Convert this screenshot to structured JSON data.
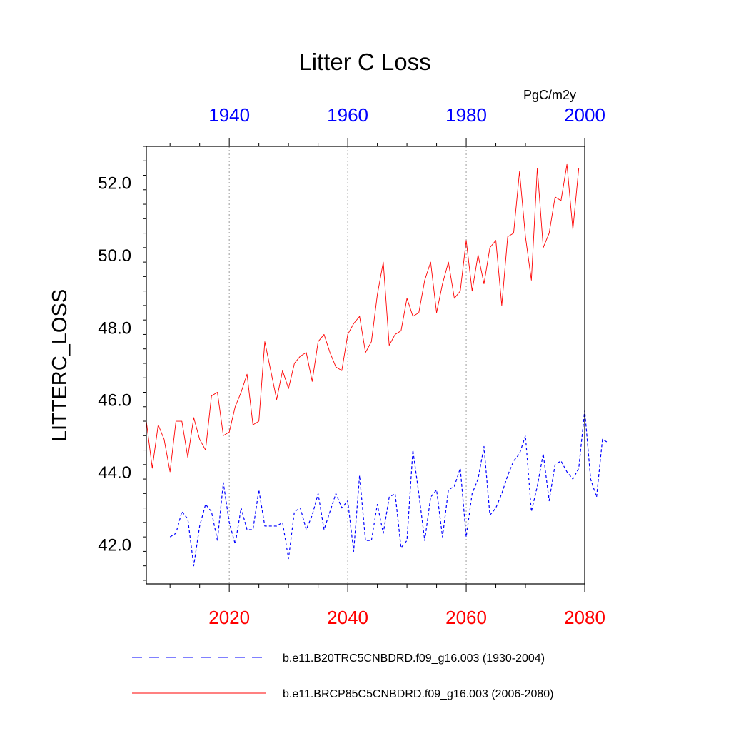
{
  "chart_data": {
    "type": "line",
    "title": "Litter C Loss",
    "units": "PgC/m2y",
    "ylabel": "LITTERC_LOSS",
    "ylim": [
      40.9,
      53.0
    ],
    "y_ticks": [
      42.0,
      44.0,
      46.0,
      48.0,
      50.0,
      52.0
    ],
    "y_tick_labels": [
      "42.0",
      "44.0",
      "46.0",
      "48.0",
      "50.0",
      "52.0"
    ],
    "top_axis": {
      "color": "#0000ff",
      "xlim": [
        1926,
        2000
      ],
      "ticks": [
        1940,
        1960,
        1980,
        2000
      ],
      "tick_labels": [
        "1940",
        "1960",
        "1980",
        "2000"
      ]
    },
    "bottom_axis": {
      "color": "#ff0000",
      "xlim": [
        2006,
        2080
      ],
      "ticks": [
        2020,
        2040,
        2060,
        2080
      ],
      "tick_labels": [
        "2020",
        "2040",
        "2060",
        "2080"
      ]
    },
    "grid": "vertical-dotted",
    "series": [
      {
        "name": "b.e11.B20TRC5CNBDRD.f09_g16.003 (1930-2004)",
        "axis": "top",
        "color": "#0000ff",
        "style": "dashed",
        "x_start": 1930,
        "values": [
          42.2,
          42.3,
          42.9,
          42.7,
          41.4,
          42.5,
          43.1,
          42.9,
          42.1,
          43.7,
          42.6,
          42.0,
          43.0,
          42.4,
          42.4,
          43.5,
          42.5,
          42.5,
          42.5,
          42.6,
          41.6,
          42.9,
          43.0,
          42.4,
          42.8,
          43.4,
          42.4,
          42.9,
          43.4,
          43.0,
          43.2,
          41.8,
          43.9,
          42.1,
          42.1,
          43.1,
          42.3,
          43.3,
          43.4,
          41.9,
          42.1,
          44.6,
          43.4,
          42.1,
          43.3,
          43.5,
          42.2,
          43.5,
          43.6,
          44.1,
          42.2,
          43.4,
          43.8,
          44.7,
          42.8,
          43.0,
          43.4,
          43.9,
          44.3,
          44.5,
          45.0,
          42.9,
          43.6,
          44.5,
          43.2,
          44.2,
          44.3,
          44.0,
          43.8,
          44.1,
          45.7,
          43.8,
          43.3,
          44.9,
          44.8
        ]
      },
      {
        "name": "b.e11.BRCP85C5CNBDRD.f09_g16.003 (2006-2080)",
        "axis": "bottom",
        "color": "#ff0000",
        "style": "solid",
        "x_start": 2006,
        "values": [
          45.4,
          44.1,
          45.3,
          44.9,
          44.0,
          45.4,
          45.4,
          44.4,
          45.5,
          44.9,
          44.6,
          46.1,
          46.2,
          45.0,
          45.1,
          45.8,
          46.2,
          46.7,
          45.3,
          45.4,
          47.6,
          46.8,
          46.0,
          46.8,
          46.3,
          47.0,
          47.2,
          47.3,
          46.5,
          47.6,
          47.8,
          47.3,
          46.9,
          46.8,
          47.8,
          48.1,
          48.3,
          47.3,
          47.6,
          48.9,
          49.8,
          47.5,
          47.8,
          47.9,
          48.8,
          48.3,
          48.4,
          49.3,
          49.8,
          48.4,
          49.2,
          49.8,
          48.8,
          49.0,
          50.4,
          49.0,
          50.0,
          49.2,
          50.2,
          50.4,
          48.6,
          50.5,
          50.6,
          52.3,
          50.5,
          49.3,
          52.4,
          50.2,
          50.6,
          51.6,
          51.5,
          52.5,
          50.7,
          52.4,
          52.4
        ]
      }
    ]
  }
}
